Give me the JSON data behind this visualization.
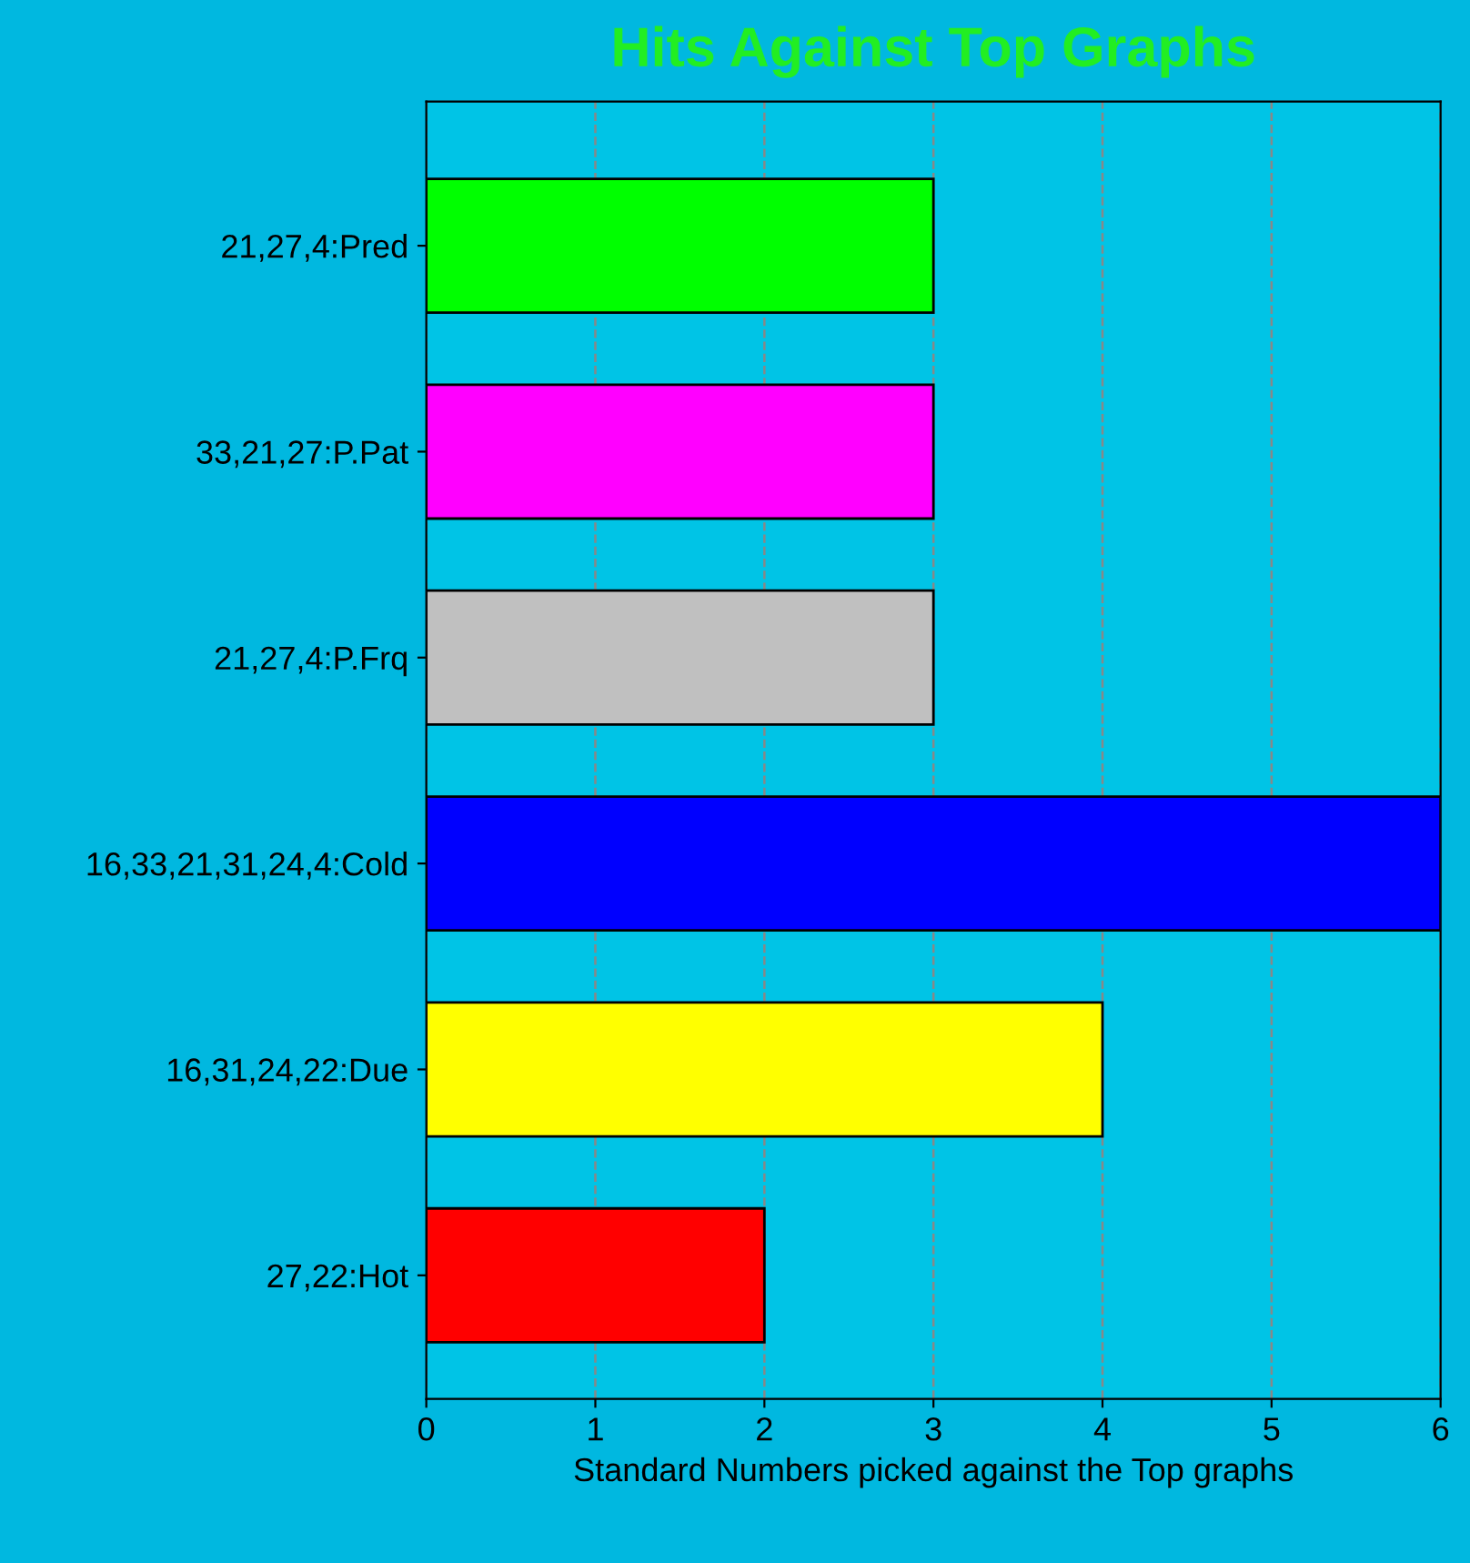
{
  "chart_data": {
    "type": "bar",
    "orientation": "horizontal",
    "title": "Hits Against Top Graphs",
    "xlabel": "Standard Numbers picked against the Top graphs",
    "categories": [
      "21,27,4:Pred",
      "33,21,27:P.Pat",
      "21,27,4:P.Frq",
      "16,33,21,31,24,4:Cold",
      "16,31,24,22:Due",
      "27,22:Hot"
    ],
    "values": [
      3,
      3,
      3,
      6,
      4,
      2
    ],
    "colors": [
      "#00ff00",
      "#ff00ff",
      "#c0c0c0",
      "#0000ff",
      "#ffff00",
      "#ff0000"
    ],
    "xlim": [
      0,
      6
    ],
    "xticks": [
      0,
      1,
      2,
      3,
      4,
      5,
      6
    ],
    "grid": true,
    "legend": false
  }
}
